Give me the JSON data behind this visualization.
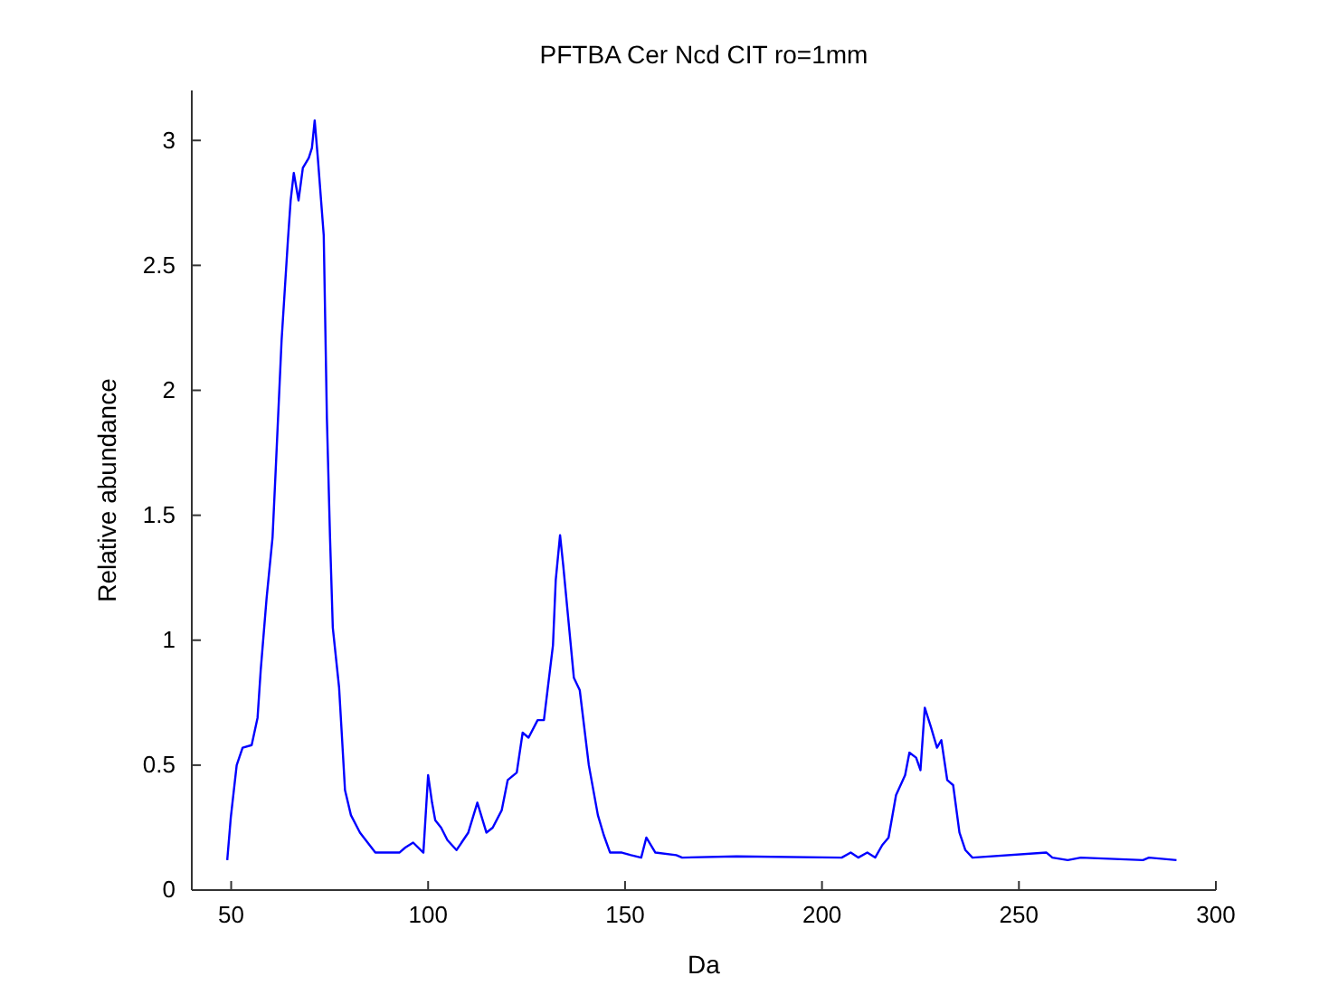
{
  "chart_data": {
    "type": "line",
    "title": "PFTBA Cer Ncd CIT ro=1mm",
    "xlabel": "Da",
    "ylabel": "Relative abundance",
    "xlim": [
      40,
      300
    ],
    "xticks": [
      50,
      100,
      150,
      200,
      250,
      300
    ],
    "ylim": [
      0,
      3.2
    ],
    "yticks": [
      0,
      0.5,
      1,
      1.5,
      2,
      2.5,
      3
    ],
    "grid": false,
    "marker": "none",
    "line_style": "solid",
    "series": [
      {
        "color": "#0000ff",
        "x": [
          49,
          49.9,
          51.4,
          52.9,
          55.2,
          56.7,
          57.5,
          59,
          60.5,
          61.3,
          62.8,
          64.4,
          65.1,
          65.9,
          67.1,
          68.2,
          69.7,
          70.5,
          71.2,
          72,
          73.5,
          74.3,
          75.1,
          75.8,
          77.4,
          78.1,
          78.9,
          80.4,
          82.7,
          86.6,
          92.7,
          94.2,
          96.2,
          98.8,
          100,
          101,
          101.8,
          103.3,
          104.9,
          107.2,
          110.2,
          112.5,
          114.8,
          116.4,
          118.7,
          120.2,
          122.5,
          124,
          125.5,
          127.8,
          129.4,
          131.7,
          132.4,
          133.5,
          134.3,
          135.5,
          137,
          138.5,
          140.8,
          143.1,
          144.6,
          146.2,
          149.2,
          151.5,
          154.1,
          155.4,
          157.7,
          163,
          164.5,
          178.3,
          205,
          207.3,
          209.2,
          211.5,
          213.5,
          215.3,
          216.9,
          218.8,
          221.1,
          222.2,
          223.9,
          225,
          226.1,
          227.7,
          229.2,
          230.3,
          231.8,
          233.3,
          234.9,
          236.4,
          238.2,
          257,
          258.5,
          262.4,
          265.7,
          281.5,
          283,
          290
        ],
        "values": [
          0.12,
          0.29,
          0.5,
          0.57,
          0.58,
          0.69,
          0.88,
          1.17,
          1.41,
          1.68,
          2.2,
          2.6,
          2.76,
          2.87,
          2.76,
          2.89,
          2.93,
          2.97,
          3.08,
          2.93,
          2.62,
          1.89,
          1.41,
          1.05,
          0.81,
          0.62,
          0.4,
          0.3,
          0.23,
          0.15,
          0.15,
          0.17,
          0.19,
          0.15,
          0.46,
          0.35,
          0.28,
          0.25,
          0.2,
          0.16,
          0.23,
          0.35,
          0.23,
          0.25,
          0.32,
          0.44,
          0.47,
          0.63,
          0.61,
          0.68,
          0.68,
          0.98,
          1.24,
          1.42,
          1.3,
          1.1,
          0.85,
          0.8,
          0.5,
          0.3,
          0.22,
          0.15,
          0.15,
          0.14,
          0.13,
          0.21,
          0.15,
          0.14,
          0.13,
          0.135,
          0.13,
          0.15,
          0.13,
          0.15,
          0.13,
          0.18,
          0.21,
          0.38,
          0.46,
          0.55,
          0.53,
          0.48,
          0.73,
          0.65,
          0.57,
          0.6,
          0.44,
          0.42,
          0.23,
          0.16,
          0.13,
          0.15,
          0.13,
          0.12,
          0.13,
          0.12,
          0.13,
          0.12
        ]
      }
    ]
  }
}
